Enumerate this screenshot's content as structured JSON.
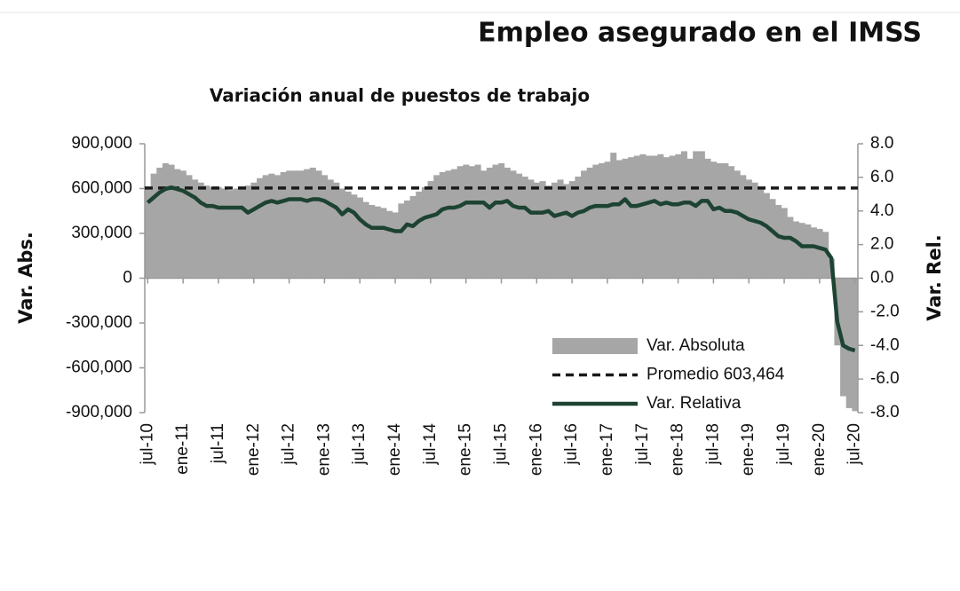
{
  "chart_data": {
    "type": "combo",
    "title": "Empleo asegurado en el IMSS",
    "subtitle": "Variación anual de puestos de trabajo",
    "y_label": "Var. Abs.",
    "y2_label": "Var. Rel.",
    "categories": [
      "jul-10",
      null,
      null,
      null,
      null,
      null,
      "ene-11",
      null,
      null,
      null,
      null,
      null,
      "jul-11",
      null,
      null,
      null,
      null,
      null,
      "ene-12",
      null,
      null,
      null,
      null,
      null,
      "jul-12",
      null,
      null,
      null,
      null,
      null,
      "ene-13",
      null,
      null,
      null,
      null,
      null,
      "jul-13",
      null,
      null,
      null,
      null,
      null,
      "ene-14",
      null,
      null,
      null,
      null,
      null,
      "jul-14",
      null,
      null,
      null,
      null,
      null,
      "ene-15",
      null,
      null,
      null,
      null,
      null,
      "jul-15",
      null,
      null,
      null,
      null,
      null,
      "ene-16",
      null,
      null,
      null,
      null,
      null,
      "jul-16",
      null,
      null,
      null,
      null,
      null,
      "ene-17",
      null,
      null,
      null,
      null,
      null,
      "jul-17",
      null,
      null,
      null,
      null,
      null,
      "ene-18",
      null,
      null,
      null,
      null,
      null,
      "jul-18",
      null,
      null,
      null,
      null,
      null,
      "ene-19",
      null,
      null,
      null,
      null,
      null,
      "jul-19",
      null,
      null,
      null,
      null,
      null,
      "ene-20",
      null,
      null,
      null,
      null,
      null,
      "jul-20"
    ],
    "series": [
      {
        "name": "Var. Absoluta",
        "type": "bar",
        "color": "#a6a6a6",
        "values": [
          610000,
          700000,
          740000,
          770000,
          760000,
          730000,
          720000,
          690000,
          660000,
          640000,
          620000,
          610000,
          610000,
          600000,
          590000,
          600000,
          610000,
          620000,
          640000,
          670000,
          690000,
          700000,
          690000,
          710000,
          720000,
          720000,
          720000,
          730000,
          740000,
          720000,
          690000,
          660000,
          640000,
          600000,
          580000,
          560000,
          540000,
          510000,
          490000,
          480000,
          470000,
          450000,
          440000,
          500000,
          520000,
          550000,
          580000,
          610000,
          650000,
          690000,
          710000,
          720000,
          730000,
          750000,
          760000,
          750000,
          760000,
          720000,
          740000,
          760000,
          770000,
          740000,
          720000,
          700000,
          680000,
          660000,
          640000,
          650000,
          620000,
          640000,
          660000,
          630000,
          650000,
          680000,
          720000,
          740000,
          760000,
          770000,
          780000,
          840000,
          790000,
          800000,
          810000,
          820000,
          830000,
          820000,
          820000,
          830000,
          810000,
          820000,
          830000,
          850000,
          800000,
          850000,
          850000,
          800000,
          780000,
          770000,
          770000,
          750000,
          720000,
          690000,
          660000,
          640000,
          610000,
          570000,
          530000,
          490000,
          470000,
          410000,
          380000,
          370000,
          360000,
          340000,
          330000,
          310000,
          130000,
          -450000,
          -790000,
          -870000,
          -890000
        ]
      },
      {
        "name": "Promedio 603,464",
        "type": "hline",
        "color": "#1a1a1a",
        "value": 603464
      },
      {
        "name": "Var. Relativa",
        "type": "line",
        "axis": "y2",
        "color": "#1d4332",
        "values": [
          4.5,
          4.8,
          5.1,
          5.3,
          5.4,
          5.3,
          5.2,
          5.0,
          4.8,
          4.5,
          4.3,
          4.3,
          4.2,
          4.2,
          4.2,
          4.2,
          4.2,
          3.9,
          4.1,
          4.3,
          4.5,
          4.6,
          4.5,
          4.6,
          4.7,
          4.7,
          4.7,
          4.6,
          4.7,
          4.7,
          4.6,
          4.4,
          4.2,
          3.8,
          4.1,
          3.9,
          3.5,
          3.2,
          3.0,
          3.0,
          3.0,
          2.9,
          2.8,
          2.8,
          3.2,
          3.1,
          3.4,
          3.6,
          3.7,
          3.8,
          4.1,
          4.2,
          4.2,
          4.3,
          4.5,
          4.5,
          4.5,
          4.5,
          4.2,
          4.5,
          4.5,
          4.6,
          4.3,
          4.2,
          4.2,
          3.9,
          3.9,
          3.9,
          4.0,
          3.7,
          3.8,
          3.9,
          3.7,
          3.9,
          4.0,
          4.2,
          4.3,
          4.3,
          4.3,
          4.4,
          4.4,
          4.7,
          4.3,
          4.3,
          4.4,
          4.5,
          4.6,
          4.4,
          4.5,
          4.4,
          4.4,
          4.5,
          4.5,
          4.3,
          4.6,
          4.6,
          4.1,
          4.2,
          4.0,
          4.0,
          3.9,
          3.7,
          3.5,
          3.4,
          3.3,
          3.1,
          2.8,
          2.5,
          2.4,
          2.4,
          2.2,
          1.9,
          1.9,
          1.9,
          1.8,
          1.7,
          1.2,
          -2.6,
          -4.0,
          -4.2,
          -4.3
        ]
      }
    ],
    "ylim": [
      -900000,
      900000
    ],
    "yticks": [
      {
        "value": -900000,
        "label": "-900,000"
      },
      {
        "value": -600000,
        "label": "-600,000"
      },
      {
        "value": -300000,
        "label": "-300,000"
      },
      0,
      {
        "value": 300000,
        "label": "300,000"
      },
      {
        "value": 600000,
        "label": "600,000"
      },
      {
        "value": 900000,
        "label": "900,000"
      }
    ],
    "y2lim": [
      -8,
      8
    ],
    "y2ticks": [
      {
        "value": -8,
        "label": "-8.0"
      },
      {
        "value": -6,
        "label": "-6.0"
      },
      {
        "value": -4,
        "label": "-4.0"
      },
      {
        "value": -2,
        "label": "-2.0"
      },
      {
        "value": 0,
        "label": "0.0"
      },
      {
        "value": 2,
        "label": "2.0"
      },
      {
        "value": 4,
        "label": "4.0"
      },
      {
        "value": 6,
        "label": "6.0"
      },
      {
        "value": 8,
        "label": "8.0"
      }
    ],
    "legend": "lower-right"
  }
}
